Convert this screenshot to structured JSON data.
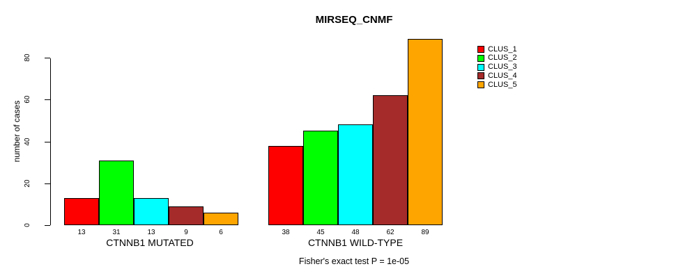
{
  "title": "MIRSEQ_CNMF",
  "caption": "Fisher's exact test P = 1e-05",
  "y_axis": {
    "label": "number of cases",
    "ticks": [
      0,
      20,
      40,
      60,
      80
    ]
  },
  "groups": [
    {
      "label": "CTNNB1 MUTATED"
    },
    {
      "label": "CTNNB1 WILD-TYPE"
    }
  ],
  "legend": {
    "entries": [
      {
        "label": "CLUS_1",
        "color": "#FF0000"
      },
      {
        "label": "CLUS_2",
        "color": "#00FF00"
      },
      {
        "label": "CLUS_3",
        "color": "#00FFFF"
      },
      {
        "label": "CLUS_4",
        "color": "#A52A2A"
      },
      {
        "label": "CLUS_5",
        "color": "#FFA500"
      }
    ]
  },
  "chart_data": {
    "type": "bar",
    "title": "MIRSEQ_CNMF",
    "xlabel": "",
    "ylabel": "number of cases",
    "ylim": [
      0,
      89
    ],
    "yticks": [
      0,
      20,
      40,
      60,
      80
    ],
    "grid": false,
    "legend_position": "right-outside",
    "categories": [
      "CTNNB1 MUTATED",
      "CTNNB1 WILD-TYPE"
    ],
    "series": [
      {
        "name": "CLUS_1",
        "color": "#FF0000",
        "values": [
          13,
          38
        ]
      },
      {
        "name": "CLUS_2",
        "color": "#00FF00",
        "values": [
          31,
          45
        ]
      },
      {
        "name": "CLUS_3",
        "color": "#00FFFF",
        "values": [
          13,
          48
        ]
      },
      {
        "name": "CLUS_4",
        "color": "#A52A2A",
        "values": [
          9,
          62
        ]
      },
      {
        "name": "CLUS_5",
        "color": "#FFA500",
        "values": [
          6,
          89
        ]
      }
    ],
    "bar_value_labels": {
      "CTNNB1 MUTATED": [
        13,
        31,
        13,
        9,
        6
      ],
      "CTNNB1 WILD-TYPE": [
        38,
        45,
        48,
        62,
        89
      ]
    },
    "annotation": "Fisher's exact test P = 1e-05"
  }
}
